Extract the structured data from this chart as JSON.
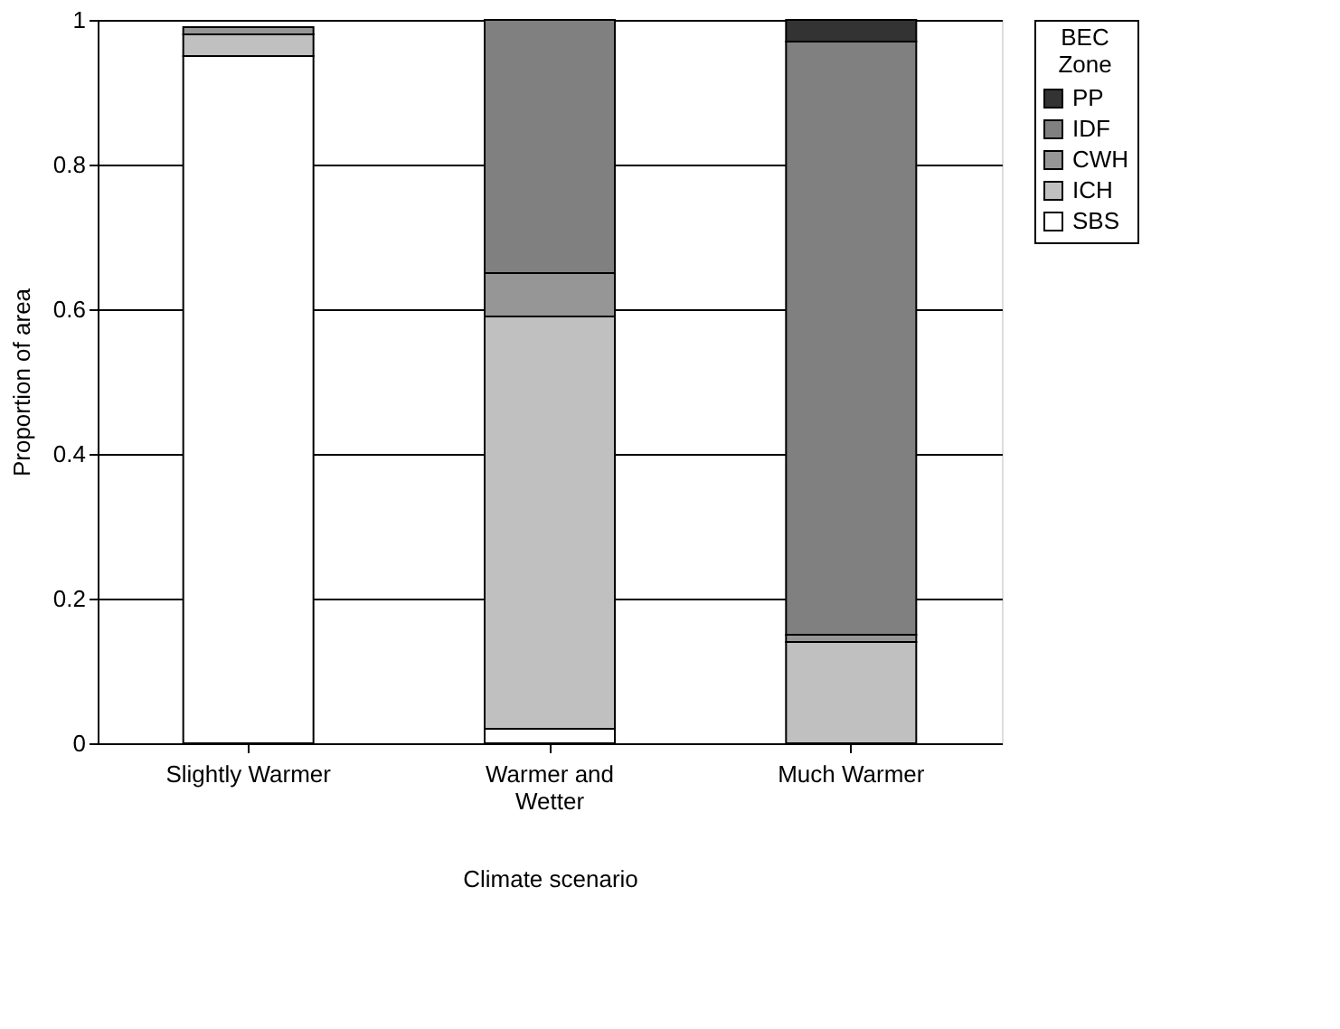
{
  "chart_data": {
    "type": "bar",
    "stacked": true,
    "xlabel": "Climate scenario",
    "ylabel": "Proportion of area",
    "legend_title": "BEC Zone",
    "categories": [
      "Slightly Warmer",
      "Warmer and Wetter",
      "Much Warmer"
    ],
    "series": [
      {
        "name": "SBS",
        "color": "#ffffff",
        "values": [
          0.95,
          0.02,
          0.0
        ]
      },
      {
        "name": "ICH",
        "color": "#c0c0c0",
        "values": [
          0.03,
          0.57,
          0.14
        ]
      },
      {
        "name": "CWH",
        "color": "#969696",
        "values": [
          0.01,
          0.06,
          0.01
        ]
      },
      {
        "name": "IDF",
        "color": "#808080",
        "values": [
          0.0,
          0.35,
          0.82
        ]
      },
      {
        "name": "PP",
        "color": "#333333",
        "values": [
          0.0,
          0.0,
          0.03
        ]
      }
    ],
    "ylim": [
      0,
      1
    ],
    "yticks": [
      0,
      0.2,
      0.4,
      0.6,
      0.8,
      1
    ],
    "grid": "y",
    "legend": "right"
  }
}
